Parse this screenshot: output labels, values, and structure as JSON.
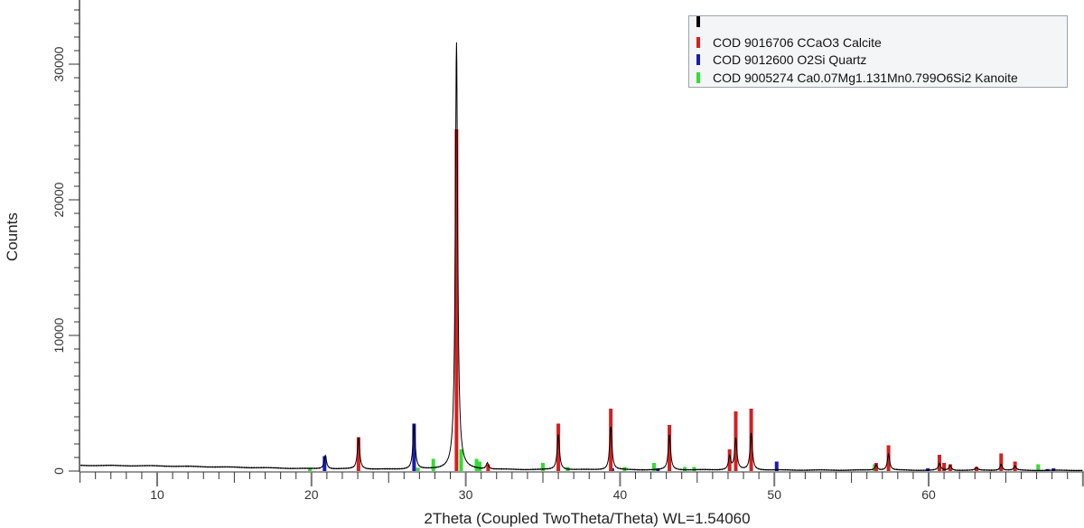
{
  "chart_data": {
    "type": "bar",
    "title": "",
    "xlabel": "2Theta (Coupled TwoTheta/Theta) WL=1.54060",
    "ylabel": "Counts",
    "xlim": [
      5,
      70
    ],
    "ylim": [
      0,
      34700
    ],
    "x_ticks": [
      10,
      20,
      30,
      40,
      50,
      60
    ],
    "y_ticks": [
      0,
      10000,
      20000,
      30000
    ],
    "grid": false,
    "legend_position": "top-right",
    "measured_pattern": {
      "name": "",
      "color": "#000000",
      "baseline": [
        [
          5,
          420
        ],
        [
          10,
          380
        ],
        [
          15,
          280
        ],
        [
          20,
          170
        ],
        [
          25,
          120
        ],
        [
          30,
          110
        ],
        [
          40,
          90
        ],
        [
          50,
          70
        ],
        [
          60,
          60
        ],
        [
          70,
          50
        ]
      ],
      "peaks": [
        [
          20.9,
          1000
        ],
        [
          23.05,
          2300
        ],
        [
          26.65,
          3300
        ],
        [
          29.4,
          31500
        ],
        [
          31.4,
          450
        ],
        [
          36.0,
          2600
        ],
        [
          39.4,
          3200
        ],
        [
          43.2,
          2600
        ],
        [
          47.1,
          1000
        ],
        [
          47.5,
          2300
        ],
        [
          48.5,
          2700
        ],
        [
          56.6,
          400
        ],
        [
          57.4,
          1200
        ],
        [
          60.7,
          500
        ],
        [
          61.4,
          350
        ],
        [
          63.1,
          200
        ],
        [
          64.7,
          450
        ],
        [
          65.6,
          300
        ]
      ]
    },
    "series": [
      {
        "name": "COD 9016706 CCaO3 Calcite",
        "color": "#d42020",
        "sticks": [
          [
            23.05,
            2500
          ],
          [
            29.4,
            25200
          ],
          [
            31.45,
            500
          ],
          [
            36.0,
            3500
          ],
          [
            39.4,
            4600
          ],
          [
            43.2,
            3400
          ],
          [
            47.1,
            1600
          ],
          [
            47.5,
            4400
          ],
          [
            48.5,
            4600
          ],
          [
            56.6,
            600
          ],
          [
            57.4,
            1900
          ],
          [
            60.7,
            1200
          ],
          [
            61.0,
            600
          ],
          [
            61.4,
            500
          ],
          [
            63.1,
            300
          ],
          [
            64.7,
            1300
          ],
          [
            65.6,
            700
          ]
        ]
      },
      {
        "name": "COD 9012600 O2Si Quartz",
        "color": "#1a1ab4",
        "sticks": [
          [
            20.85,
            1100
          ],
          [
            26.65,
            3500
          ],
          [
            39.5,
            200
          ],
          [
            42.45,
            200
          ],
          [
            50.15,
            700
          ],
          [
            59.95,
            200
          ],
          [
            67.7,
            150
          ],
          [
            68.1,
            200
          ]
        ]
      },
      {
        "name": "COD 9005274  Ca0.07Mg1.131Mn0.799O6Si2  Kanoite",
        "color": "#33dd33",
        "sticks": [
          [
            19.9,
            250
          ],
          [
            26.9,
            250
          ],
          [
            27.9,
            900
          ],
          [
            29.7,
            1600
          ],
          [
            30.7,
            900
          ],
          [
            30.9,
            700
          ],
          [
            35.0,
            600
          ],
          [
            36.6,
            300
          ],
          [
            40.3,
            300
          ],
          [
            42.2,
            600
          ],
          [
            44.2,
            300
          ],
          [
            44.8,
            300
          ],
          [
            56.5,
            500
          ],
          [
            67.1,
            500
          ]
        ]
      }
    ]
  },
  "legend": {
    "items": [
      {
        "label": "",
        "color": "#000000"
      },
      {
        "label": "COD 9016706 CCaO3 Calcite",
        "color": "#d42020"
      },
      {
        "label": "COD 9012600 O2Si Quartz",
        "color": "#1a1ab4"
      },
      {
        "label": "COD 9005274  Ca0.07Mg1.131Mn0.799O6Si2  Kanoite",
        "color": "#33dd33"
      }
    ]
  },
  "axes": {
    "x_title": "2Theta (Coupled TwoTheta/Theta) WL=1.54060",
    "y_title": "Counts",
    "x_tick_labels": [
      "10",
      "20",
      "30",
      "40",
      "50",
      "60"
    ],
    "y_tick_labels": [
      "0",
      "10000",
      "20000",
      "30000"
    ]
  }
}
